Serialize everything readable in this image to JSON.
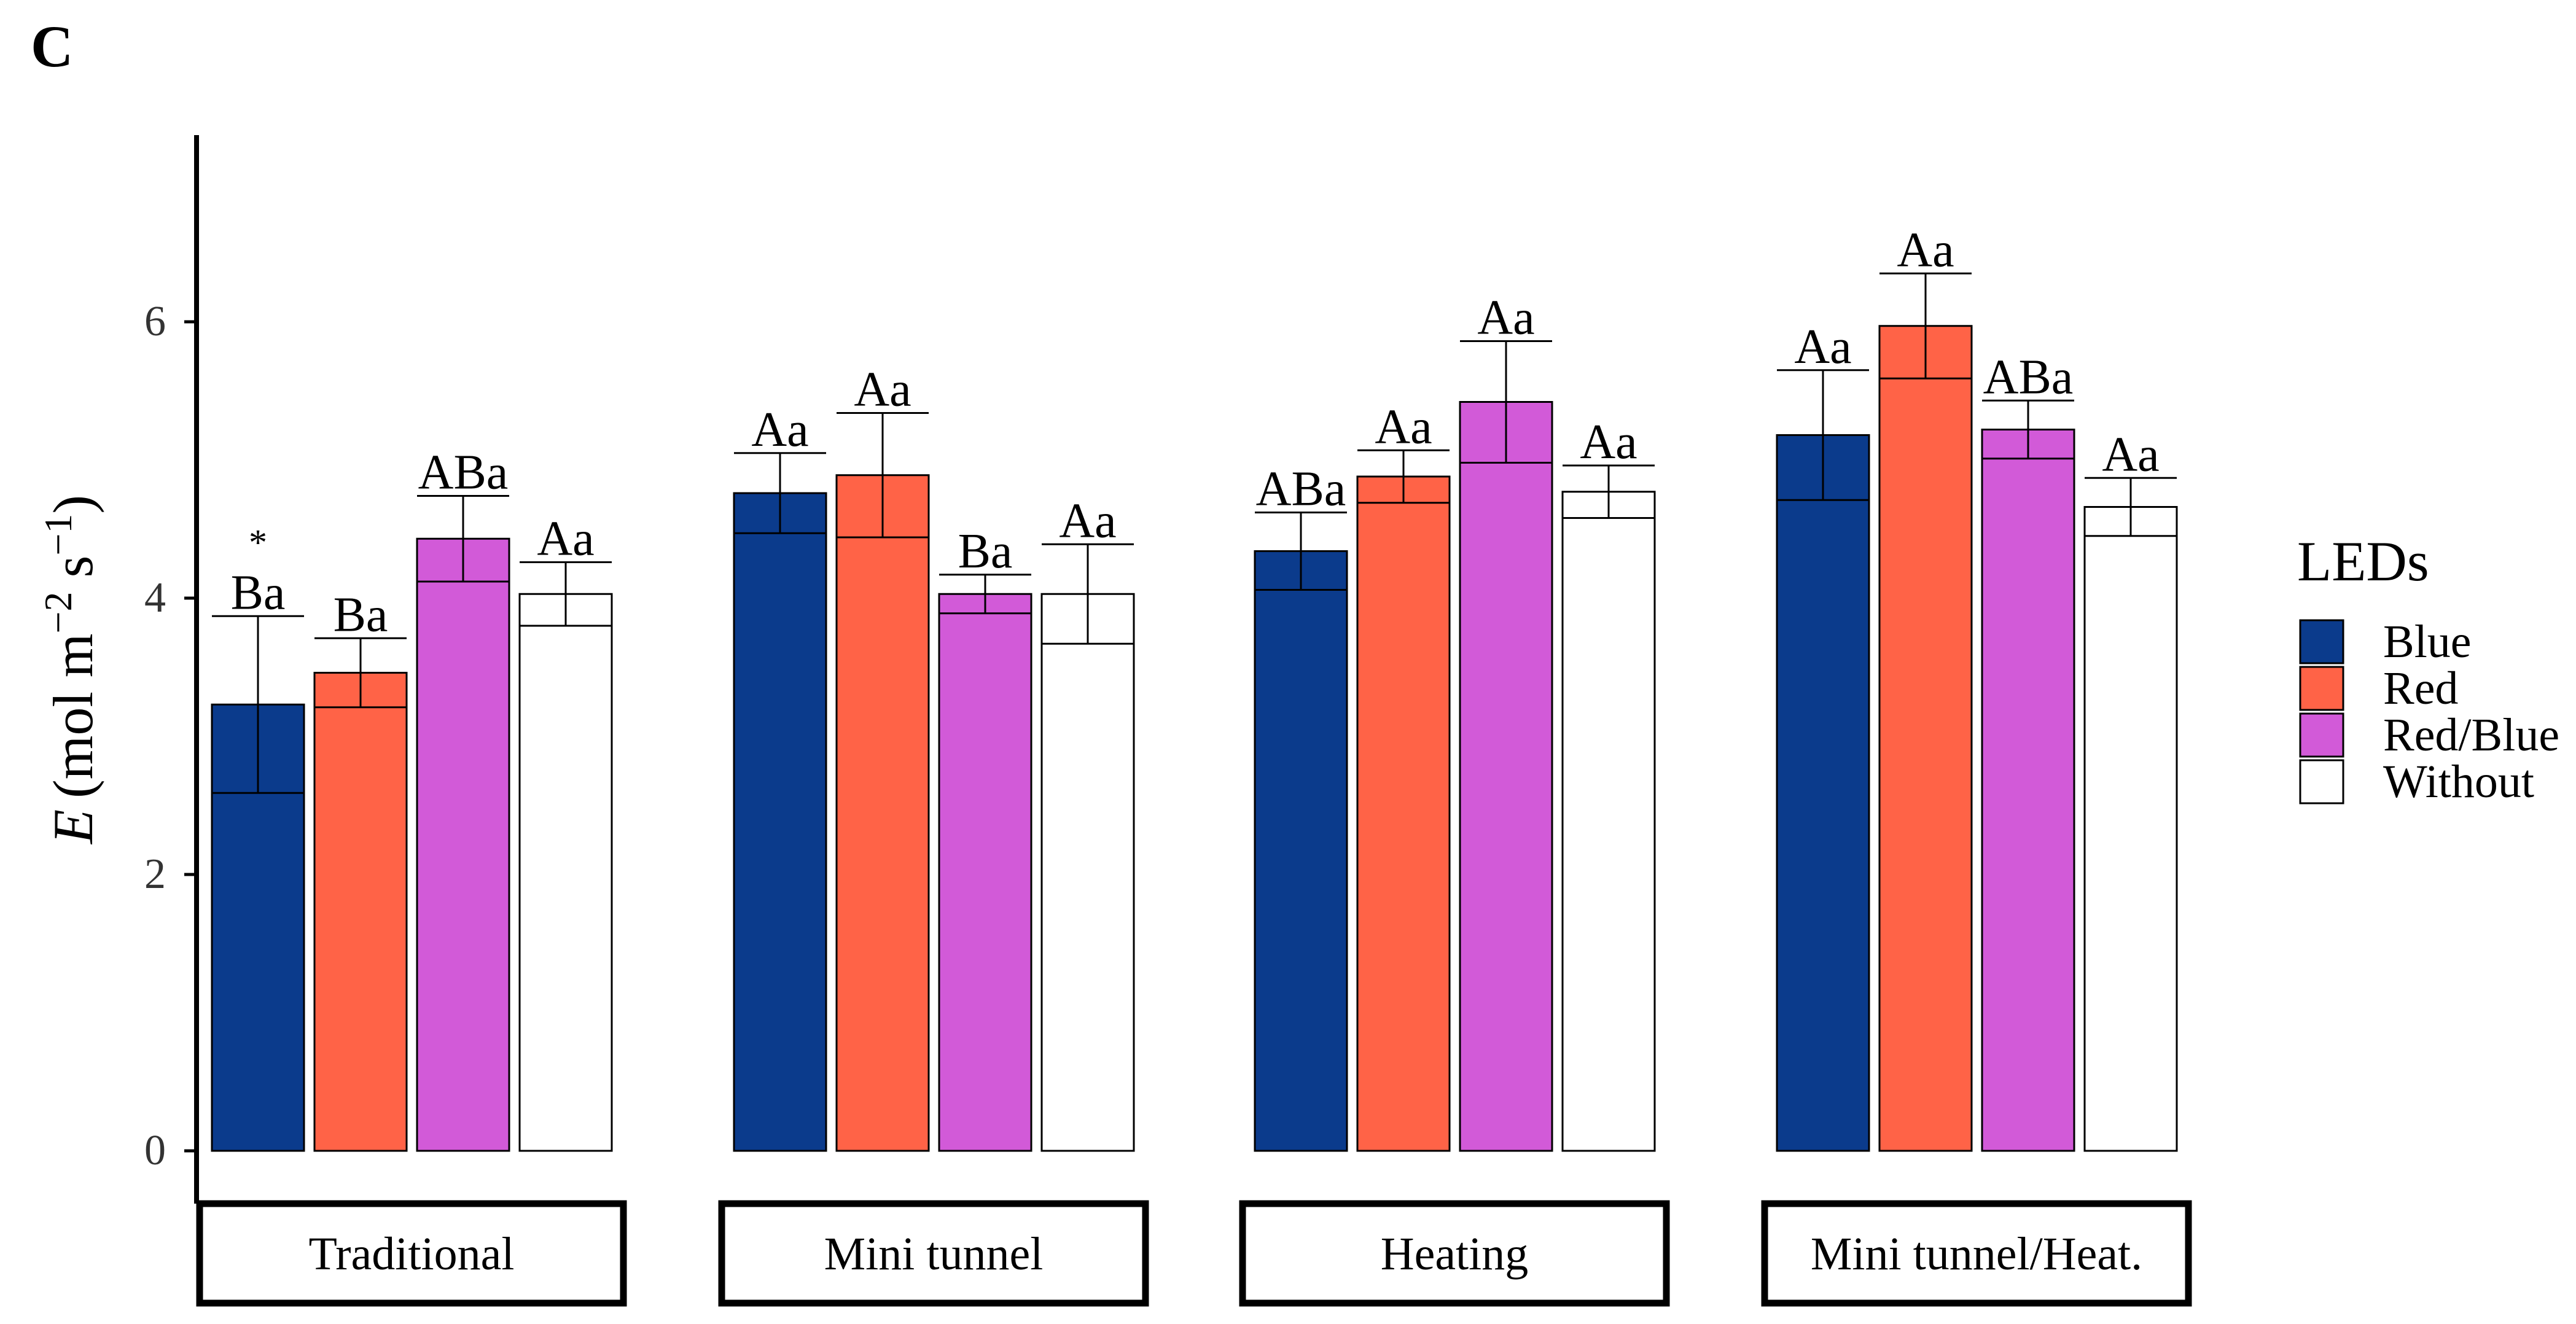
{
  "panel_label": "C",
  "legend": {
    "title": "LEDs",
    "items": [
      {
        "label": "Blue",
        "color": "#0b3b8c"
      },
      {
        "label": "Red",
        "color": "#ff6347"
      },
      {
        "label": "Red/Blue",
        "color": "#d25ad8"
      },
      {
        "label": "Without",
        "color": "#ffffff"
      }
    ]
  },
  "chart_data": {
    "type": "bar",
    "ylabel_italic": "E",
    "ylabel_unit": "(mol m",
    "ylabel_exp1": "−2",
    "ylabel_mid": " s",
    "ylabel_exp2": "−1",
    "ylabel_close": ")",
    "ylim": [
      0,
      7.5
    ],
    "yticks": [
      0,
      2,
      4,
      6
    ],
    "grid": false,
    "categories": [
      "Traditional",
      "Mini tunnel",
      "Heating",
      "Mini tunnel/Heat."
    ],
    "series": [
      {
        "name": "Blue",
        "values": [
          3.23,
          4.76,
          4.34,
          5.18
        ],
        "errors": [
          0.64,
          0.29,
          0.28,
          0.47
        ],
        "labels": [
          "Ba",
          "Aa",
          "ABa",
          "Aa"
        ]
      },
      {
        "name": "Red",
        "values": [
          3.46,
          4.89,
          4.88,
          5.97
        ],
        "errors": [
          0.25,
          0.45,
          0.19,
          0.38
        ],
        "labels": [
          "Ba",
          "Aa",
          "Aa",
          "Aa"
        ]
      },
      {
        "name": "Red/Blue",
        "values": [
          4.43,
          4.03,
          5.42,
          5.22
        ],
        "errors": [
          0.31,
          0.14,
          0.44,
          0.21
        ],
        "labels": [
          "ABa",
          "Ba",
          "Aa",
          "ABa"
        ]
      },
      {
        "name": "Without",
        "values": [
          4.03,
          4.03,
          4.77,
          4.66
        ],
        "errors": [
          0.23,
          0.36,
          0.19,
          0.21
        ],
        "labels": [
          "Aa",
          "Aa",
          "Aa",
          "Aa"
        ]
      }
    ],
    "annotations": [
      {
        "text": "*",
        "category": "Traditional",
        "series": "Blue"
      }
    ]
  }
}
